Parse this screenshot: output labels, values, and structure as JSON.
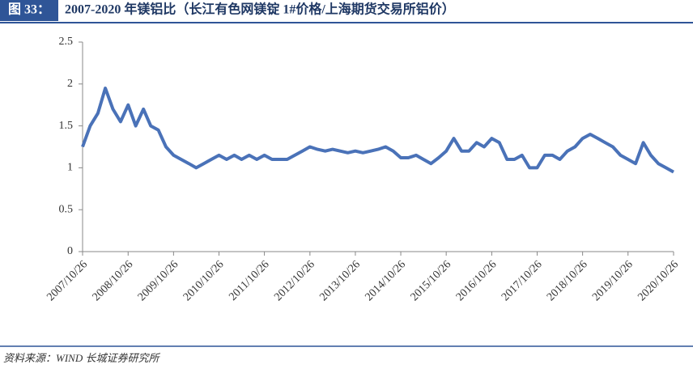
{
  "chart_data": {
    "type": "line",
    "figure_label": "图 33：",
    "title": "2007-2020 年镁铝比（长江有色网镁锭 1#价格/上海期货交易所铝价）",
    "source": "资料来源：WIND  长城证券研究所",
    "x": [
      "2007/10/26",
      "2007/12/26",
      "2008/02/26",
      "2008/04/26",
      "2008/06/26",
      "2008/08/26",
      "2008/10/26",
      "2008/12/26",
      "2009/02/26",
      "2009/04/26",
      "2009/06/26",
      "2009/08/26",
      "2009/10/26",
      "2009/12/26",
      "2010/02/26",
      "2010/04/26",
      "2010/06/26",
      "2010/08/26",
      "2010/10/26",
      "2010/12/26",
      "2011/02/26",
      "2011/04/26",
      "2011/06/26",
      "2011/08/26",
      "2011/10/26",
      "2011/12/26",
      "2012/02/26",
      "2012/04/26",
      "2012/06/26",
      "2012/08/26",
      "2012/10/26",
      "2012/12/26",
      "2013/02/26",
      "2013/04/26",
      "2013/06/26",
      "2013/08/26",
      "2013/10/26",
      "2013/12/26",
      "2014/02/26",
      "2014/04/26",
      "2014/06/26",
      "2014/08/26",
      "2014/10/26",
      "2014/12/26",
      "2015/02/26",
      "2015/04/26",
      "2015/06/26",
      "2015/08/26",
      "2015/10/26",
      "2015/12/26",
      "2016/02/26",
      "2016/04/26",
      "2016/06/26",
      "2016/08/26",
      "2016/10/26",
      "2016/12/26",
      "2017/02/26",
      "2017/04/26",
      "2017/06/26",
      "2017/08/26",
      "2017/10/26",
      "2017/12/26",
      "2018/02/26",
      "2018/04/26",
      "2018/06/26",
      "2018/08/26",
      "2018/10/26",
      "2018/12/26",
      "2019/02/26",
      "2019/04/26",
      "2019/06/26",
      "2019/08/26",
      "2019/10/26",
      "2019/12/26",
      "2020/02/26",
      "2020/04/26",
      "2020/06/26",
      "2020/08/26",
      "2020/10/26"
    ],
    "series": [
      {
        "name": "镁铝比",
        "color": "#4a72b8",
        "values": [
          1.25,
          1.5,
          1.65,
          1.95,
          1.7,
          1.55,
          1.75,
          1.5,
          1.7,
          1.5,
          1.45,
          1.25,
          1.15,
          1.1,
          1.05,
          1.0,
          1.05,
          1.1,
          1.15,
          1.1,
          1.15,
          1.1,
          1.15,
          1.1,
          1.15,
          1.1,
          1.1,
          1.1,
          1.15,
          1.2,
          1.25,
          1.22,
          1.2,
          1.22,
          1.2,
          1.18,
          1.2,
          1.18,
          1.2,
          1.22,
          1.25,
          1.2,
          1.12,
          1.12,
          1.15,
          1.1,
          1.05,
          1.12,
          1.2,
          1.35,
          1.2,
          1.2,
          1.3,
          1.25,
          1.35,
          1.3,
          1.1,
          1.1,
          1.15,
          1.0,
          1.0,
          1.15,
          1.15,
          1.1,
          1.2,
          1.25,
          1.35,
          1.4,
          1.35,
          1.3,
          1.25,
          1.15,
          1.1,
          1.05,
          1.3,
          1.15,
          1.05,
          1.0,
          0.95
        ]
      }
    ],
    "xlim": [
      "2007/10/26",
      "2020/10/26"
    ],
    "xticks": [
      "2007/10/26",
      "2008/10/26",
      "2009/10/26",
      "2010/10/26",
      "2011/10/26",
      "2012/10/26",
      "2013/10/26",
      "2014/10/26",
      "2015/10/26",
      "2016/10/26",
      "2017/10/26",
      "2018/10/26",
      "2019/10/26",
      "2020/10/26"
    ],
    "ylim": [
      0,
      2.5
    ],
    "yticks": [
      0,
      0.5,
      1,
      1.5,
      2,
      2.5
    ],
    "grid": false
  }
}
